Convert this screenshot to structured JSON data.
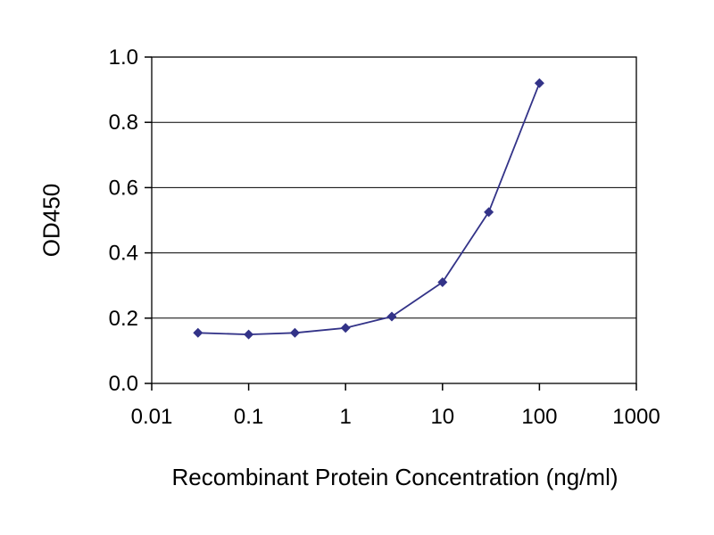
{
  "chart_data": {
    "type": "line",
    "title": "",
    "xlabel": "Recombinant Protein Concentration (ng/ml)",
    "ylabel": "OD450",
    "x_scale": "log",
    "x": [
      0.03,
      0.1,
      0.3,
      1,
      3,
      10,
      30,
      100
    ],
    "series": [
      {
        "name": "OD450",
        "values": [
          0.155,
          0.15,
          0.155,
          0.17,
          0.205,
          0.31,
          0.525,
          0.92
        ],
        "marker": "diamond"
      }
    ],
    "xlim": [
      0.01,
      1000
    ],
    "ylim": [
      0.0,
      1.0
    ],
    "x_ticks": [
      0.01,
      0.1,
      1,
      10,
      100,
      1000
    ],
    "x_tick_labels": [
      "0.01",
      "0.1",
      "1",
      "10",
      "100",
      "1000"
    ],
    "y_ticks": [
      0.0,
      0.2,
      0.4,
      0.6,
      0.8,
      1.0
    ],
    "y_tick_labels": [
      "0.0",
      "0.2",
      "0.4",
      "0.6",
      "0.8",
      "1.0"
    ],
    "grid": "horizontal",
    "legend": "none",
    "colors": {
      "line": "#333388",
      "marker": "#333388",
      "grid": "#000000",
      "axis": "#000000",
      "text": "#000000",
      "background": "#ffffff"
    }
  }
}
